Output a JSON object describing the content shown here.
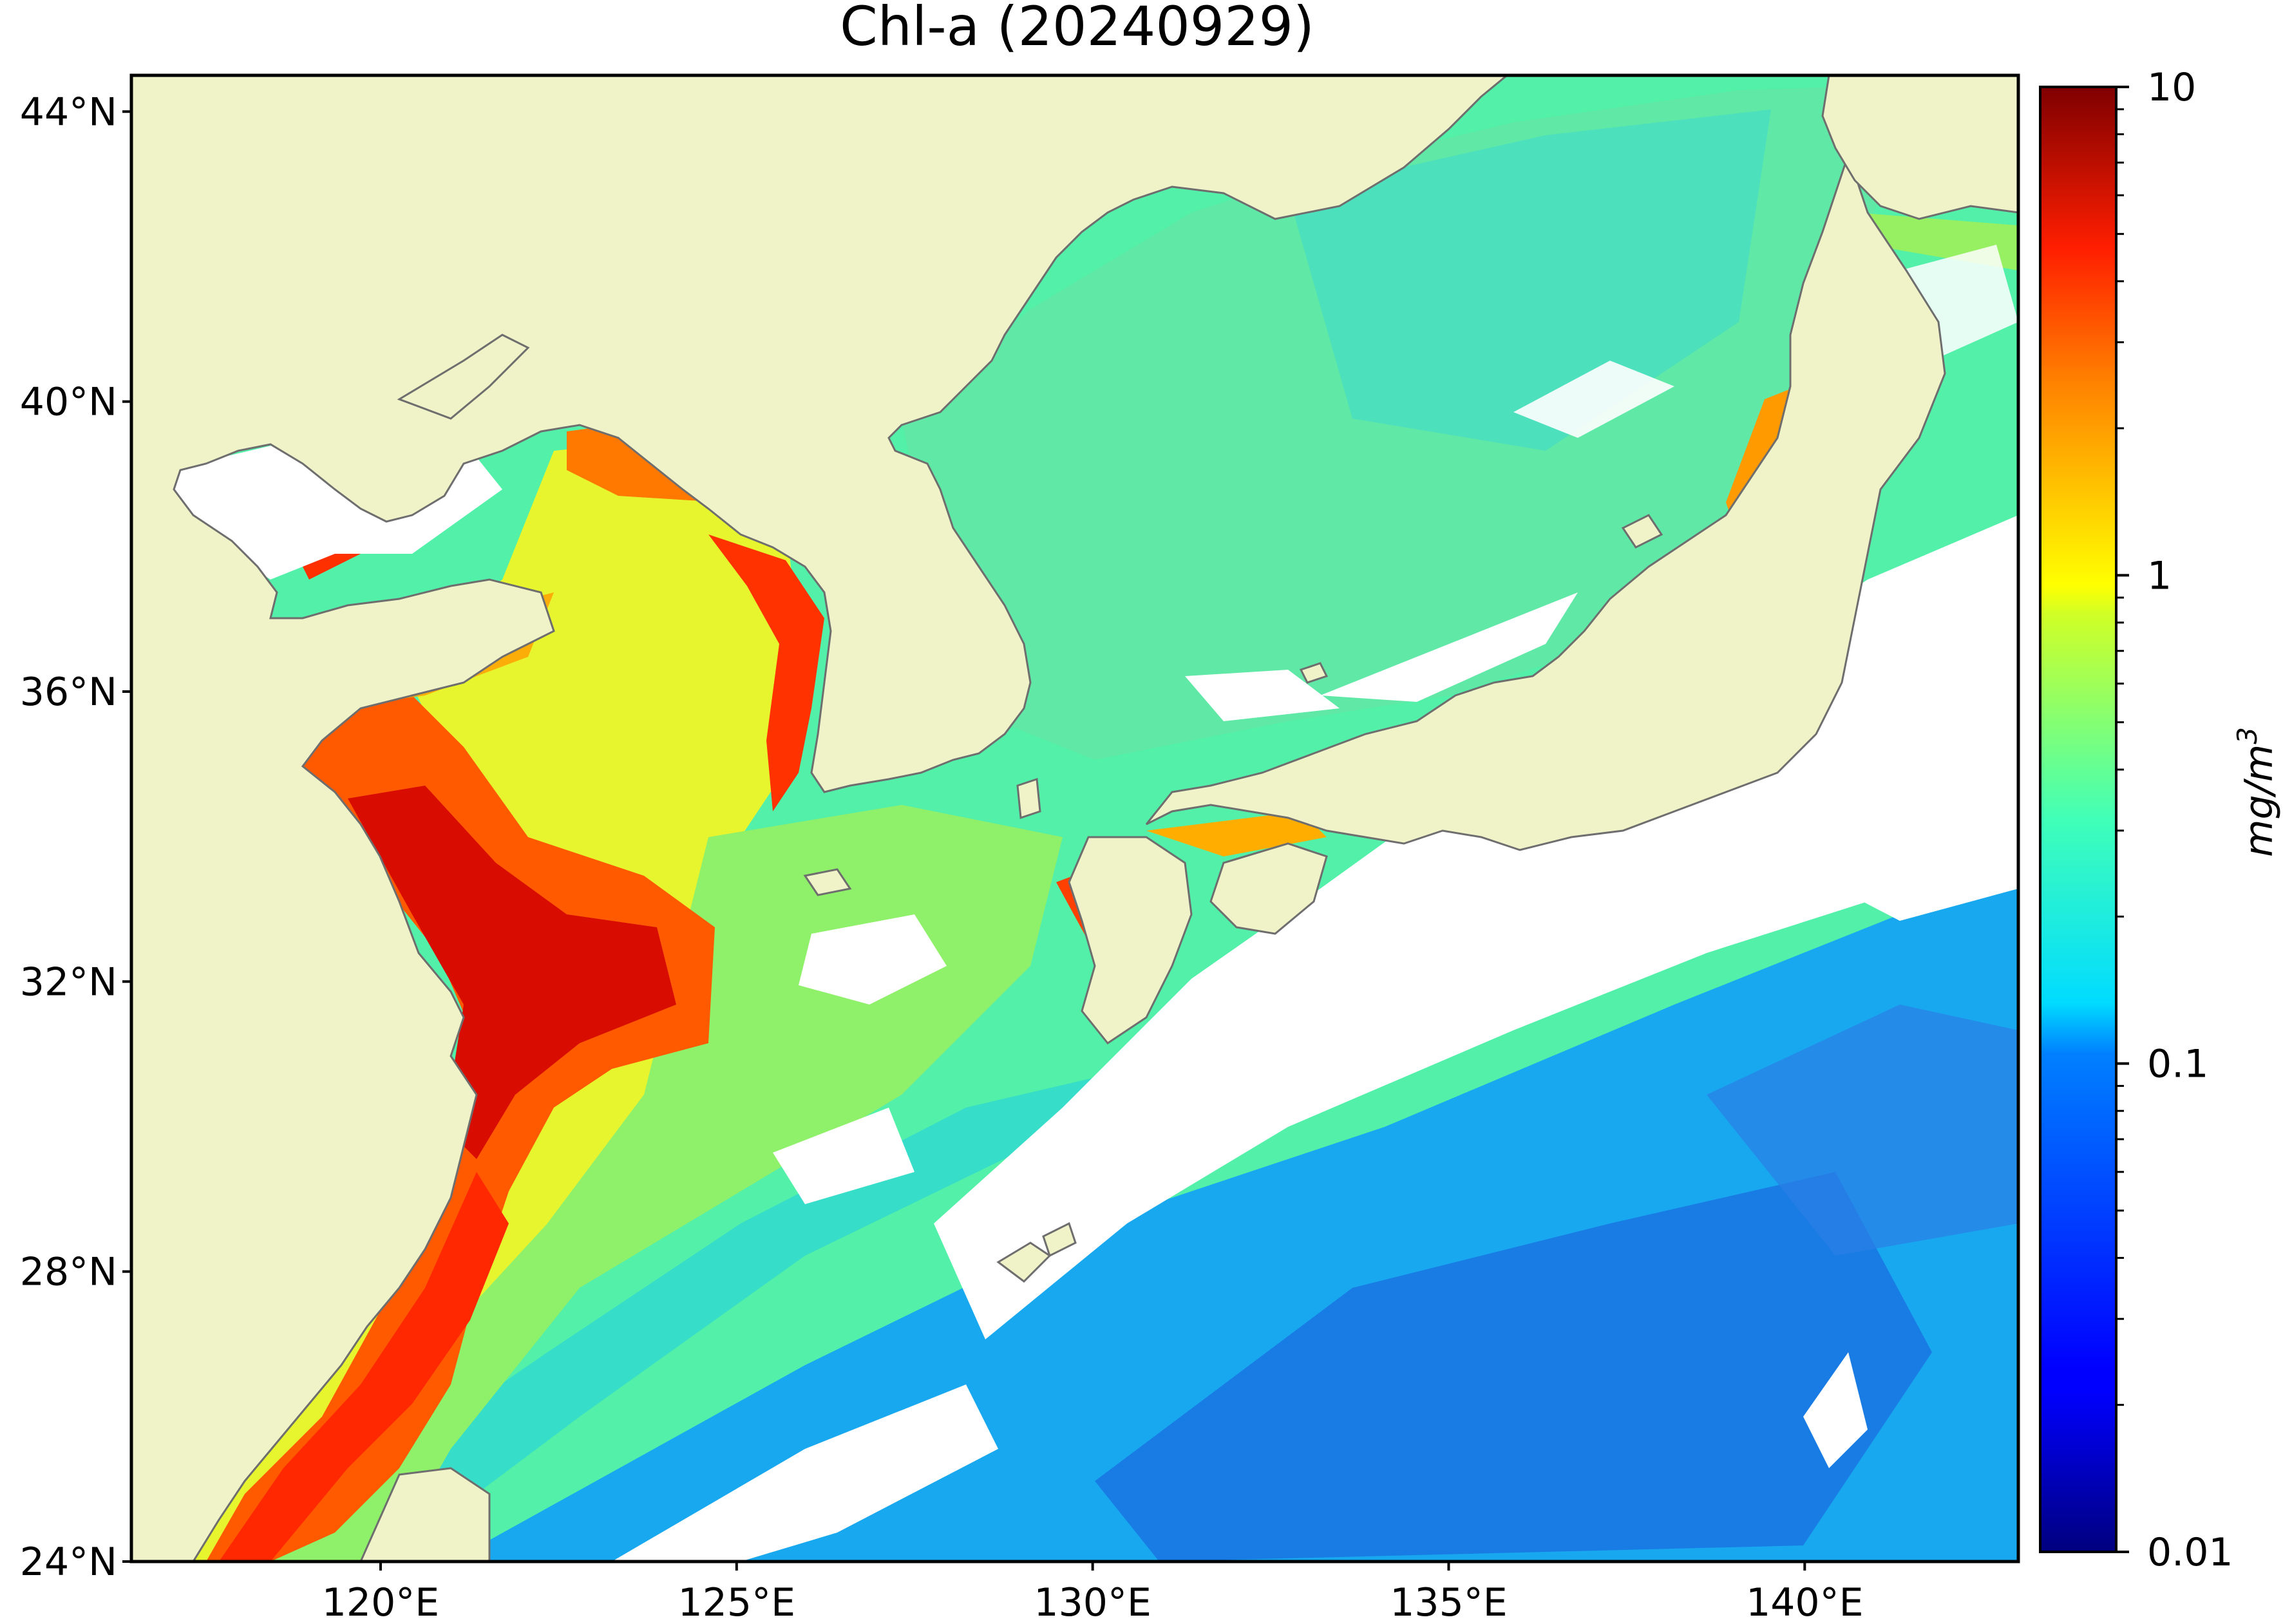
{
  "title": "Chl-a (20240929)",
  "map": {
    "lon_range": [
      116.5,
      143.0
    ],
    "lat_range": [
      24.0,
      44.5
    ],
    "lon_ticks": [
      {
        "value": 120,
        "label": "120°E"
      },
      {
        "value": 125,
        "label": "125°E"
      },
      {
        "value": 130,
        "label": "130°E"
      },
      {
        "value": 135,
        "label": "135°E"
      },
      {
        "value": 140,
        "label": "140°E"
      }
    ],
    "lat_ticks": [
      {
        "value": 44,
        "label": "44°N"
      },
      {
        "value": 40,
        "label": "40°N"
      },
      {
        "value": 36,
        "label": "36°N"
      },
      {
        "value": 32,
        "label": "32°N"
      },
      {
        "value": 28,
        "label": "28°N"
      },
      {
        "value": 24,
        "label": "24°N"
      }
    ],
    "land_color": "#f0f2c8",
    "coastline_color": "#6e6e6e",
    "no_data_color": "#ffffff"
  },
  "colorbar": {
    "scale": "log",
    "range": [
      0.01,
      10
    ],
    "unit_label": "mg/m",
    "unit_superscript": "3",
    "colormap": "jet",
    "ticks": [
      {
        "value": 10,
        "label": "10"
      },
      {
        "value": 1,
        "label": "1"
      },
      {
        "value": 0.1,
        "label": "0.1"
      },
      {
        "value": 0.01,
        "label": "0.01"
      }
    ]
  }
}
